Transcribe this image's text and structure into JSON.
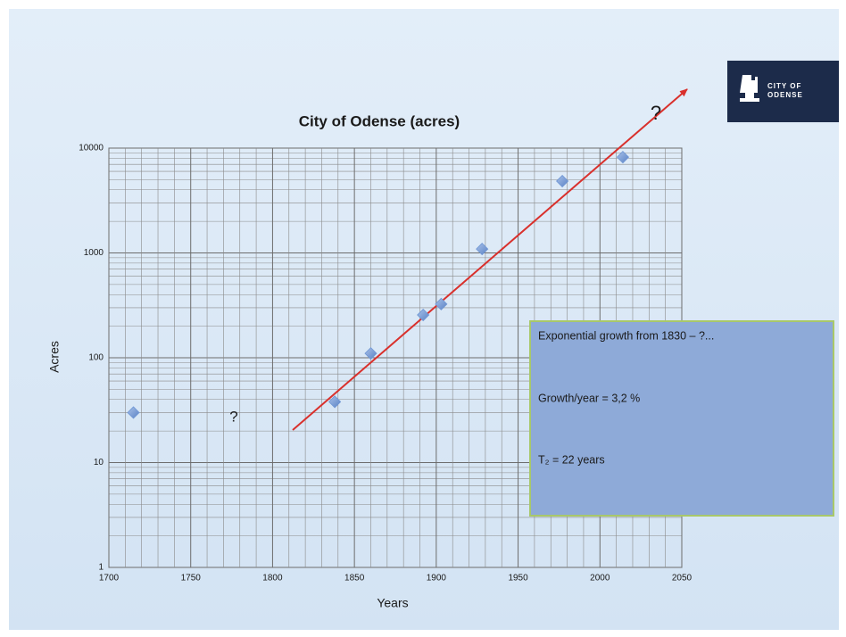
{
  "chart_data": {
    "type": "scatter",
    "title": "City of Odense (acres)",
    "x_label": "Years",
    "y_label": "Acres",
    "x": [
      1715,
      1838,
      1860,
      1892,
      1903,
      1928,
      1977,
      2014
    ],
    "values": [
      30,
      38,
      110,
      256,
      325,
      1090,
      4840,
      8200
    ],
    "color": "#6f96d4",
    "xlim": [
      1700,
      2050
    ],
    "xticks": [
      1700,
      1750,
      1800,
      1850,
      1900,
      1950,
      2000,
      2050
    ],
    "ylim": [
      1,
      10000
    ],
    "yticks": [
      1,
      10,
      100,
      1000,
      10000
    ],
    "log_y": true,
    "grid": true,
    "annotations": [
      "?",
      "?"
    ],
    "text_box": [
      "Exponential growth  from 1830 – ?...",
      "Growth/year = 3,2 %",
      "T₂ = 22 years"
    ]
  },
  "logo": {
    "lines": [
      "CITY OF",
      "ODENSE"
    ]
  }
}
